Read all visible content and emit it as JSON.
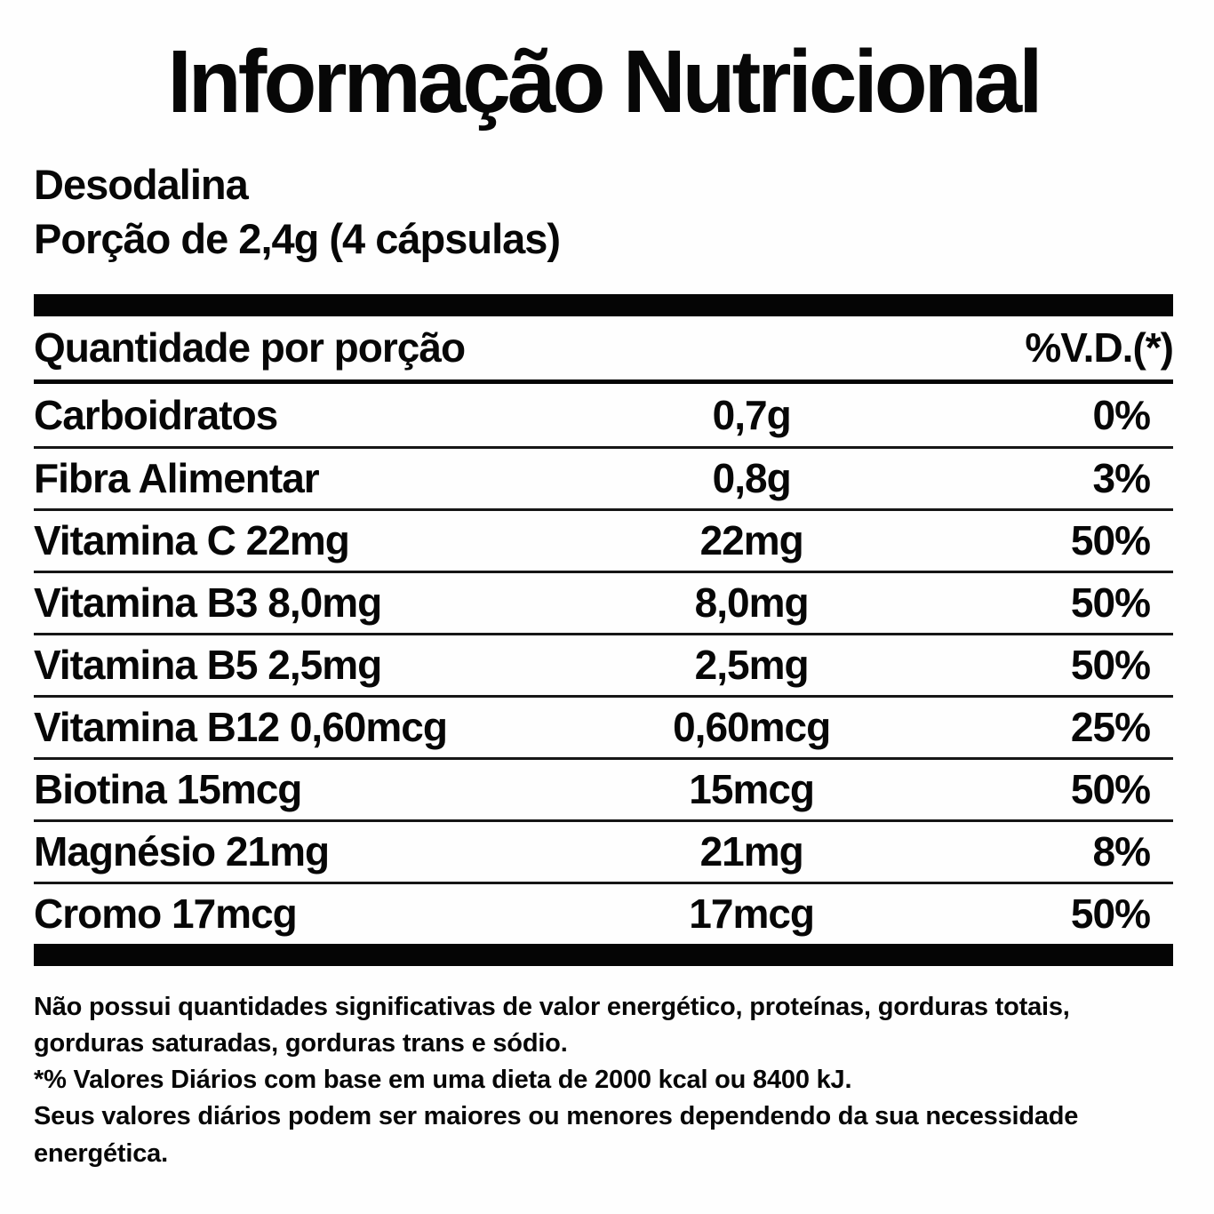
{
  "label": {
    "title": "Informação Nutricional",
    "product_name": "Desodalina",
    "serving_size": "Porção de 2,4g (4 cápsulas)"
  },
  "table": {
    "header": {
      "quantity_label": "Quantidade por porção",
      "dv_label": "%V.D.(*)"
    },
    "rows": [
      {
        "nutrient": "Carboidratos",
        "amount": "0,7g",
        "dv": "0%"
      },
      {
        "nutrient": "Fibra Alimentar",
        "amount": "0,8g",
        "dv": "3%"
      },
      {
        "nutrient": "Vitamina C 22mg",
        "amount": "22mg",
        "dv": "50%"
      },
      {
        "nutrient": "Vitamina B3 8,0mg",
        "amount": "8,0mg",
        "dv": "50%"
      },
      {
        "nutrient": "Vitamina B5 2,5mg",
        "amount": "2,5mg",
        "dv": "50%"
      },
      {
        "nutrient": "Vitamina B12 0,60mcg",
        "amount": "0,60mcg",
        "dv": "25%"
      },
      {
        "nutrient": "Biotina 15mcg",
        "amount": "15mcg",
        "dv": "50%"
      },
      {
        "nutrient": "Magnésio 21mg",
        "amount": "21mg",
        "dv": "8%"
      },
      {
        "nutrient": "Cromo 17mcg",
        "amount": "17mcg",
        "dv": "50%"
      }
    ]
  },
  "notes": [
    "Não possui quantidades significativas de valor energético, proteínas, gorduras totais, gorduras saturadas, gorduras trans e sódio.",
    "*% Valores Diários com base em uma dieta de 2000 kcal ou 8400 kJ.",
    "Seus valores diários podem ser maiores ou menores dependendo da sua necessidade energética."
  ],
  "colors": {
    "text": "#070707",
    "background": "#fefefe",
    "bar": "#050505"
  }
}
